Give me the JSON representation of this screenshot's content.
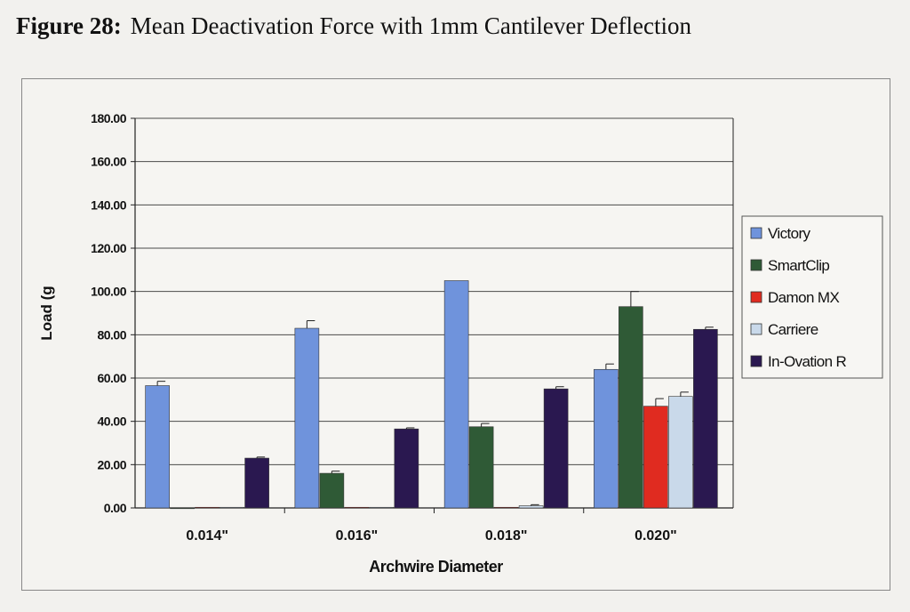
{
  "figure": {
    "label": "Figure 28:",
    "title": "Mean Deactivation Force with 1mm Cantilever Deflection"
  },
  "chart_data": {
    "type": "bar",
    "xlabel": "Archwire Diameter",
    "ylabel": "Load (g",
    "ylim": [
      0,
      180
    ],
    "yticks": [
      "0.00",
      "20.00",
      "40.00",
      "60.00",
      "80.00",
      "100.00",
      "120.00",
      "140.00",
      "160.00",
      "180.00"
    ],
    "grid": true,
    "legend_position": "right",
    "categories": [
      "0.014\"",
      "0.016\"",
      "0.018\"",
      "0.020\""
    ],
    "series": [
      {
        "name": "Victory",
        "color": "#6f93dc",
        "values": [
          56.5,
          83.0,
          105.0,
          64.0
        ],
        "errors": [
          2.0,
          3.5,
          0,
          2.5
        ]
      },
      {
        "name": "SmartClip",
        "color": "#2f5a36",
        "values": [
          0,
          16.0,
          37.5,
          93.0
        ],
        "errors": [
          0,
          1.0,
          1.5,
          7.0
        ]
      },
      {
        "name": "Damon MX",
        "color": "#e02b20",
        "values": [
          0.3,
          0.3,
          0.3,
          47.0
        ],
        "errors": [
          0,
          0,
          0,
          3.5
        ]
      },
      {
        "name": "Carriere",
        "color": "#c9d9ea",
        "values": [
          0.3,
          0.3,
          1.0,
          51.5
        ],
        "errors": [
          0,
          0,
          0.5,
          2.0
        ]
      },
      {
        "name": "In-Ovation R",
        "color": "#2a1850",
        "values": [
          23.0,
          36.5,
          55.0,
          82.5
        ],
        "errors": [
          0.5,
          0.5,
          1.0,
          1.0
        ]
      }
    ]
  }
}
